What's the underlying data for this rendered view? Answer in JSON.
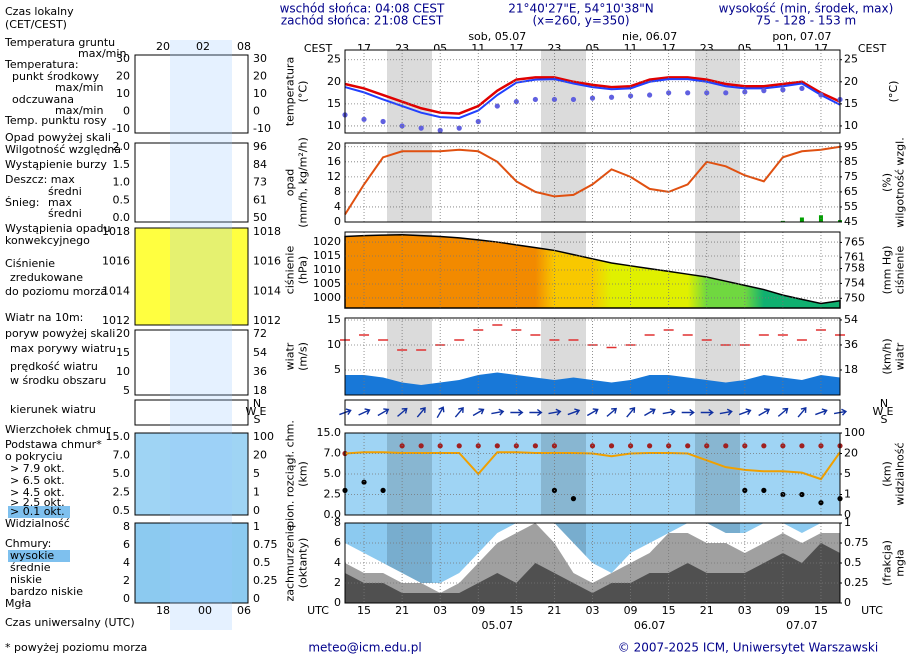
{
  "header": {
    "sunrise": "wschód słońca: 04:08 CEST",
    "sunset": "zachód słońca: 21:08 CEST",
    "coords": "21°40'27\"E, 54°10'38\"N",
    "grid": "(x=260,  y=350)",
    "elevation_title": "wysokość (min, środek, max)",
    "elevation": "75 - 128 - 153 m"
  },
  "legend": {
    "local_time": [
      "Czas lokalny",
      "(CET/CEST)"
    ],
    "local_ticks": [
      "20",
      "02",
      "08"
    ],
    "utc_time": "Czas uniwersalny (UTC)",
    "utc_ticks": [
      "18",
      "00",
      "06"
    ],
    "ground_temp": "Temperatura gruntu",
    "ground_minmax": "max/min",
    "temperature": "Temperatura:",
    "mid_minmax": "max/min",
    "feels_minmax": "max/min",
    "temp_ticks": [
      "30",
      "20",
      "10",
      "0",
      "-10"
    ],
    "precip_over": "Opad powyżej skali",
    "storm": "Wystąpienie burzy",
    "rain": "Deszcz: max",
    "snow": "Śnieg:",
    "snow_max": "max",
    "snow_avg": "średni",
    "convective": [
      "Wystąpienia opadu",
      "konwekcyjnego"
    ],
    "precip_ticks": [
      "2.0",
      "1.5",
      "1.0",
      "0.5",
      "0.0"
    ],
    "hum_ticks": [
      "96",
      "84",
      "73",
      "61",
      "50"
    ],
    "pressure": [
      "Ciśnienie",
      "zredukowane",
      "do poziomu morza"
    ],
    "pressure_ticks": [
      "1018",
      "1016",
      "1014",
      "1012"
    ],
    "wind_title": "Wiatr na 10m:",
    "gust_over": "poryw powyżej skali",
    "wind_speed": [
      "prędkość wiatru",
      "w środku obszaru"
    ],
    "wind_ticks": [
      "20",
      "15",
      "10",
      "5"
    ],
    "wind_kmh_ticks": [
      "72",
      "54",
      "36",
      "18"
    ],
    "cloud_base": [
      "Podstawa chmur*",
      "o pokryciu"
    ],
    "okta": [
      "> 6.5 okt.",
      "> 4.5 okt.",
      "> 2.5 okt.",
      "> 0.1 okt."
    ],
    "base_ticks": [
      "15.0",
      "7.0",
      "5.0",
      "2.5",
      "0.5"
    ],
    "vis_ticks": [
      "100",
      "20",
      "5",
      "1",
      "0"
    ],
    "clouds": "Chmury:",
    "very_low": "bardzo niskie",
    "fog": "Mgła",
    "cover_ticks": [
      "8",
      "6",
      "4",
      "2",
      "0"
    ],
    "frac_ticks": [
      "1",
      "0.75",
      "0.5",
      "0.25",
      "0"
    ],
    "footnote": "* powyżej poziomu morza"
  },
  "footer": {
    "email": "meteo@icm.edu.pl",
    "copyright": "© 2007-2025 ICM, Uniwersytet Warszawski"
  },
  "chart_data": [
    {
      "type": "line",
      "ylabel": [
        "temperatura",
        "(°C)"
      ],
      "y2label": [
        "(°C)"
      ],
      "xlabel": "UTC",
      "x2label": "CEST",
      "grid": true,
      "x": [
        -3,
        0,
        3,
        6,
        9,
        12,
        15,
        18,
        21,
        24,
        27,
        30,
        33,
        36,
        39,
        42,
        45,
        48,
        51,
        54,
        57,
        60,
        63,
        66,
        69,
        72,
        75
      ],
      "xlim": [
        -3,
        75
      ],
      "xticks": [
        {
          "value": 0,
          "label": "15"
        },
        {
          "value": 6,
          "label": "21"
        },
        {
          "value": 12,
          "label": "03"
        },
        {
          "value": 18,
          "label": "09"
        },
        {
          "value": 24,
          "label": "15"
        },
        {
          "value": 30,
          "label": "21"
        },
        {
          "value": 36,
          "label": "03"
        },
        {
          "value": 42,
          "label": "09"
        },
        {
          "value": 48,
          "label": "15"
        },
        {
          "value": 54,
          "label": "21"
        },
        {
          "value": 60,
          "label": "03"
        },
        {
          "value": 66,
          "label": "09"
        },
        {
          "value": 72,
          "label": "15"
        }
      ],
      "x2ticks": [
        {
          "value": 0,
          "label": "17"
        },
        {
          "value": 6,
          "label": "23"
        },
        {
          "value": 12,
          "label": "05"
        },
        {
          "value": 18,
          "label": "11"
        },
        {
          "value": 24,
          "label": "17"
        },
        {
          "value": 30,
          "label": "23"
        },
        {
          "value": 36,
          "label": "05"
        },
        {
          "value": 42,
          "label": "11"
        },
        {
          "value": 48,
          "label": "17"
        },
        {
          "value": 54,
          "label": "23"
        },
        {
          "value": 60,
          "label": "05"
        },
        {
          "value": 66,
          "label": "11"
        },
        {
          "value": 72,
          "label": "17"
        }
      ],
      "day_ticks": [
        {
          "value": 21,
          "label": "05.07"
        },
        {
          "value": 45,
          "label": "06.07"
        },
        {
          "value": 69,
          "label": "07.07"
        }
      ],
      "day_ticks_top": [
        {
          "value": 21,
          "label": "sob, 05.07"
        },
        {
          "value": 45,
          "label": "nie, 06.07"
        },
        {
          "value": 69,
          "label": "pon, 07.07"
        }
      ],
      "ylim": [
        8.4,
        27.2
      ],
      "yticks": [
        10,
        15,
        20,
        25
      ],
      "y2lim": [
        8.4,
        27.2
      ],
      "y2ticks": [
        10,
        15,
        20,
        25
      ],
      "series": [
        {
          "name": "punkt środkowy",
          "type": "line",
          "color": "#e00000",
          "values": [
            19.5,
            18.5,
            17,
            15.5,
            14,
            13,
            12.8,
            14.5,
            18,
            20.5,
            21,
            21,
            20,
            19.3,
            18.8,
            19,
            20.5,
            21,
            21,
            20.5,
            19.5,
            19,
            19,
            19.5,
            20,
            17.5,
            15.5
          ]
        },
        {
          "name": "odczuwana",
          "type": "line",
          "color": "#2040ff",
          "values": [
            18.8,
            17.6,
            16,
            14.5,
            13,
            12,
            11.8,
            13.5,
            17,
            19.8,
            20.5,
            20.6,
            19.6,
            18.8,
            18.3,
            18.5,
            20,
            20.6,
            20.6,
            20,
            19,
            18.5,
            18.5,
            19,
            19.6,
            17,
            14.8
          ]
        },
        {
          "name": "Temp. punktu rosy",
          "type": "dots",
          "color": "#6060e0",
          "values": [
            12.5,
            11.5,
            11,
            10,
            9.5,
            9,
            9.5,
            11,
            14.5,
            15.5,
            16,
            16,
            16,
            16.3,
            16.5,
            16.8,
            17,
            17.5,
            17.5,
            17.5,
            17.5,
            17.7,
            18,
            18.2,
            18.5,
            17,
            16
          ]
        }
      ]
    },
    {
      "type": "bar",
      "ylabel": [
        "opad",
        "(mm/h, kg/m²/h)"
      ],
      "y2label": [
        "(%)",
        "wilgotność wzgl."
      ],
      "grid": true,
      "y2color": "#c04000",
      "ylim": [
        0,
        21
      ],
      "yticks": [
        0,
        4,
        8,
        12,
        16,
        20
      ],
      "y2lim": [
        45,
        97.5
      ],
      "y2ticks": [
        45,
        55,
        65,
        75,
        85,
        95
      ],
      "series": [
        {
          "name": "średni",
          "type": "bar",
          "color": "#00a000",
          "values": [
            0,
            0,
            0,
            0,
            0,
            0,
            0,
            0,
            0,
            0,
            0,
            0,
            0,
            0,
            0,
            0,
            0,
            0,
            0,
            0,
            0,
            0,
            0,
            0.3,
            1.2,
            1.8,
            0.5
          ]
        },
        {
          "name": "Wilgotność względna",
          "type": "line",
          "axis": "y2",
          "color": "#e05010",
          "values": [
            50,
            70,
            88,
            92,
            92,
            92,
            93,
            92,
            85,
            72,
            65,
            62,
            63,
            70,
            80,
            75,
            67,
            65,
            70,
            85,
            82,
            76,
            72,
            88,
            92,
            93,
            95
          ]
        }
      ]
    },
    {
      "type": "area",
      "ylabel": [
        "ciśnienie",
        "(hPa)"
      ],
      "y2label": [
        "(mm Hg)",
        "ciśnienie"
      ],
      "grid": true,
      "ylim": [
        996.4,
        1023.6
      ],
      "yticks": [
        1000,
        1005,
        1010,
        1015,
        1020
      ],
      "y2lim": [
        747.4,
        767.8
      ],
      "y2ticks": [
        750,
        754,
        758,
        761,
        765
      ],
      "series": [
        {
          "type": "area",
          "color": "#000000",
          "colorscale": [
            {
              "value": 1018,
              "color": "#f28a00"
            },
            {
              "value": 1013,
              "color": "#f8c800"
            },
            {
              "value": 1008,
              "color": "#e0f000"
            },
            {
              "value": 1004,
              "color": "#70d840"
            },
            {
              "value": 990,
              "color": "#10b070"
            }
          ],
          "values": [
            1022,
            1022.3,
            1022.5,
            1022.6,
            1022.3,
            1022,
            1021.5,
            1020.8,
            1020,
            1019,
            1018,
            1017,
            1015.5,
            1014,
            1012.5,
            1011.5,
            1010.5,
            1009.5,
            1008.5,
            1007.5,
            1006,
            1004.5,
            1003,
            1001,
            999.5,
            998,
            999
          ]
        }
      ]
    },
    {
      "type": "area",
      "ylabel": [
        "wiatr",
        "(m/s)"
      ],
      "y2label": [
        "(km/h)",
        "wiatr"
      ],
      "grid": true,
      "ylim": [
        0,
        15.4
      ],
      "yticks": [
        5,
        10,
        15
      ],
      "y2lim": [
        0,
        55.4
      ],
      "y2ticks": [
        18,
        36,
        54
      ],
      "series": [
        {
          "type": "area",
          "color": "#1878d8",
          "values": [
            4,
            4,
            3.5,
            2.5,
            2,
            2.5,
            3,
            4,
            4.5,
            4,
            3.5,
            3,
            3.5,
            3,
            2.5,
            3,
            4,
            4,
            3.5,
            3,
            2.5,
            3,
            4,
            3.5,
            3,
            4,
            3.5
          ]
        },
        {
          "name": "max porywy wiatru",
          "type": "dash",
          "color": "#e03030",
          "values": [
            11,
            12,
            11,
            9,
            9,
            10,
            11,
            13,
            14,
            13,
            12,
            11,
            11,
            10,
            9.5,
            10,
            12,
            13,
            12,
            11,
            10,
            10,
            12,
            12,
            11,
            13,
            12
          ]
        }
      ]
    },
    {
      "type": "vector",
      "compass": [
        "N",
        "W",
        "E",
        "S"
      ],
      "series": [
        {
          "name": "kierunek wiatru",
          "type": "vector",
          "color": "#1030a0",
          "values": [
            250,
            245,
            240,
            230,
            220,
            210,
            220,
            240,
            260,
            270,
            270,
            260,
            250,
            240,
            230,
            220,
            240,
            260,
            270,
            270,
            260,
            250,
            240,
            230,
            220,
            250,
            260
          ]
        }
      ]
    },
    {
      "type": "scatter",
      "scale": "nonlinear",
      "ylabel": [
        "pion. rozciągł. chm.",
        "(km)"
      ],
      "y2label": [
        "(km)",
        "widzialność"
      ],
      "grid": true,
      "y2color": "#c06000",
      "ylim": [
        0,
        15
      ],
      "yticks": [
        {
          "value": 0,
          "label": "0.0"
        },
        {
          "value": 2.5,
          "label": "2.5"
        },
        {
          "value": 5,
          "label": "5.0"
        },
        {
          "value": 7,
          "label": "7.0"
        },
        {
          "value": 15,
          "label": "15.0"
        }
      ],
      "y2lim": [
        0,
        100
      ],
      "y2ticks": [
        0,
        1,
        5,
        20,
        100
      ],
      "series": [
        {
          "name": "Wierzchołek chmur",
          "type": "dots",
          "color": "#a02020",
          "values": [
            7,
            null,
            null,
            10,
            10,
            10,
            10,
            10,
            10,
            10,
            10,
            10,
            null,
            10,
            10,
            10,
            10,
            10,
            10,
            10,
            10,
            10,
            10,
            10,
            10,
            10,
            10
          ]
        },
        {
          "name": "> 7.9 okt.",
          "type": "dots",
          "color": "#000000",
          "values": [
            3,
            4,
            3,
            null,
            null,
            null,
            null,
            null,
            null,
            null,
            null,
            3,
            2,
            null,
            null,
            null,
            null,
            null,
            null,
            null,
            null,
            3,
            3,
            2.5,
            2.5,
            1.5,
            2
          ]
        },
        {
          "name": "Widzialność",
          "type": "line",
          "axis": "y2",
          "color": "#f0a000",
          "values": [
            20,
            25,
            25,
            22,
            22,
            22,
            22,
            5,
            25,
            25,
            22,
            22,
            22,
            20,
            18,
            20,
            22,
            22,
            20,
            15,
            10,
            8,
            7,
            7,
            6,
            4,
            25
          ]
        }
      ]
    },
    {
      "type": "area",
      "ylabel": [
        "zachmurzenie",
        "(oktanty)"
      ],
      "y2label": [
        "(frakcja)",
        "mgła"
      ],
      "grid": true,
      "y2color": "#c06000",
      "ylim": [
        0,
        8
      ],
      "yticks": [
        0,
        2,
        4,
        6,
        8
      ],
      "y2lim": [
        0,
        1
      ],
      "y2ticks": [
        0,
        0.25,
        0.5,
        0.75,
        1
      ],
      "series": [
        {
          "name": "wysokie",
          "type": "area",
          "color": "#ffffff",
          "values": [
            6,
            5,
            4,
            3,
            2,
            2,
            3,
            5,
            7,
            8,
            8,
            8,
            6,
            4,
            3,
            5,
            6,
            7,
            8,
            8,
            7,
            7,
            8,
            8,
            7,
            8,
            8
          ]
        },
        {
          "name": "średnie",
          "type": "area",
          "color": "#a0a0a0",
          "values": [
            4,
            3,
            3,
            2,
            2,
            1,
            2,
            4,
            6,
            7,
            8,
            6,
            3,
            2,
            3,
            4,
            5,
            7,
            7,
            6,
            6,
            5,
            6,
            7,
            6,
            7,
            7
          ]
        },
        {
          "name": "niskie",
          "type": "area",
          "color": "#505050",
          "values": [
            3,
            2,
            2,
            1,
            1,
            1,
            1,
            2,
            3,
            2,
            4,
            3,
            2,
            1,
            2,
            2,
            3,
            3,
            4,
            3,
            3,
            3,
            4,
            5,
            4,
            6,
            5
          ]
        }
      ]
    }
  ]
}
